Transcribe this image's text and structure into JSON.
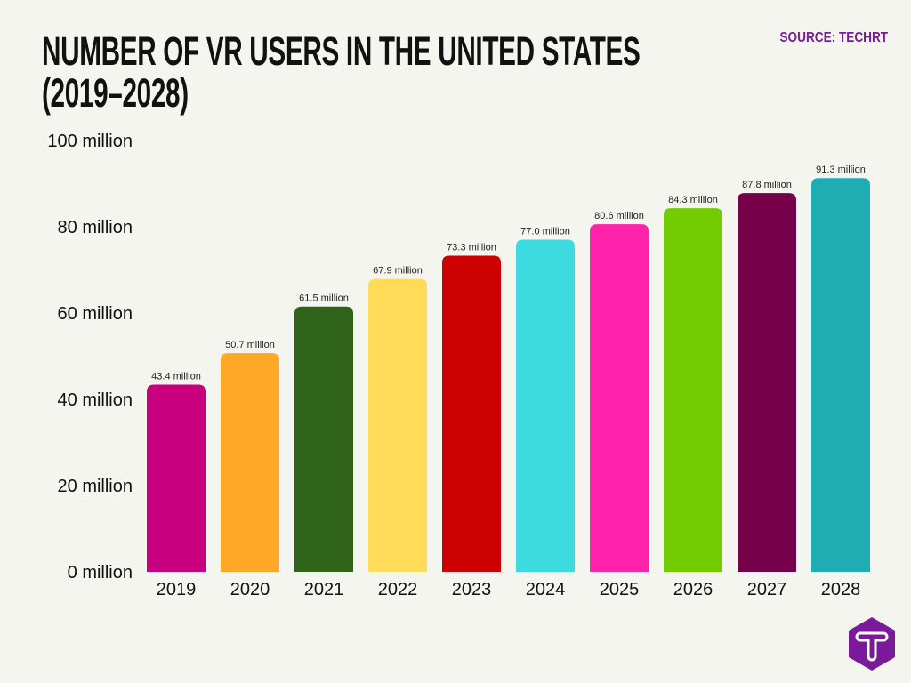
{
  "header": {
    "title_line1": "NUMBER OF VR USERS IN THE UNITED STATES",
    "title_line2": "(2019–2028)",
    "source": "SOURCE: TECHRT"
  },
  "logo": {
    "text": "T",
    "color": "#7A1A9A"
  },
  "chart_data": {
    "type": "bar",
    "title": "NUMBER OF VR USERS IN THE UNITED STATES (2019–2028)",
    "xlabel": "",
    "ylabel": "",
    "ylim": [
      0,
      100
    ],
    "yticks": [
      0,
      20,
      40,
      60,
      80,
      100
    ],
    "ytick_labels": [
      "0 million",
      "20 million",
      "40 million",
      "60 million",
      "80 million",
      "100 million"
    ],
    "grid": false,
    "categories": [
      "2019",
      "2020",
      "2021",
      "2022",
      "2023",
      "2024",
      "2025",
      "2026",
      "2027",
      "2028"
    ],
    "values": [
      43.4,
      50.7,
      61.5,
      67.9,
      73.3,
      77.0,
      80.6,
      84.3,
      87.8,
      91.3
    ],
    "data_labels": [
      "43.4 million",
      "50.7 million",
      "61.5 million",
      "67.9 million",
      "73.3 million",
      "77.0 million",
      "80.6 million",
      "84.3 million",
      "87.8 million",
      "91.3 million"
    ],
    "colors": [
      "#C8007F",
      "#FFA726",
      "#2E6319",
      "#FFDB58",
      "#CC0000",
      "#3DDBE0",
      "#FF22AA",
      "#72CC00",
      "#76004A",
      "#1FADB3"
    ]
  }
}
